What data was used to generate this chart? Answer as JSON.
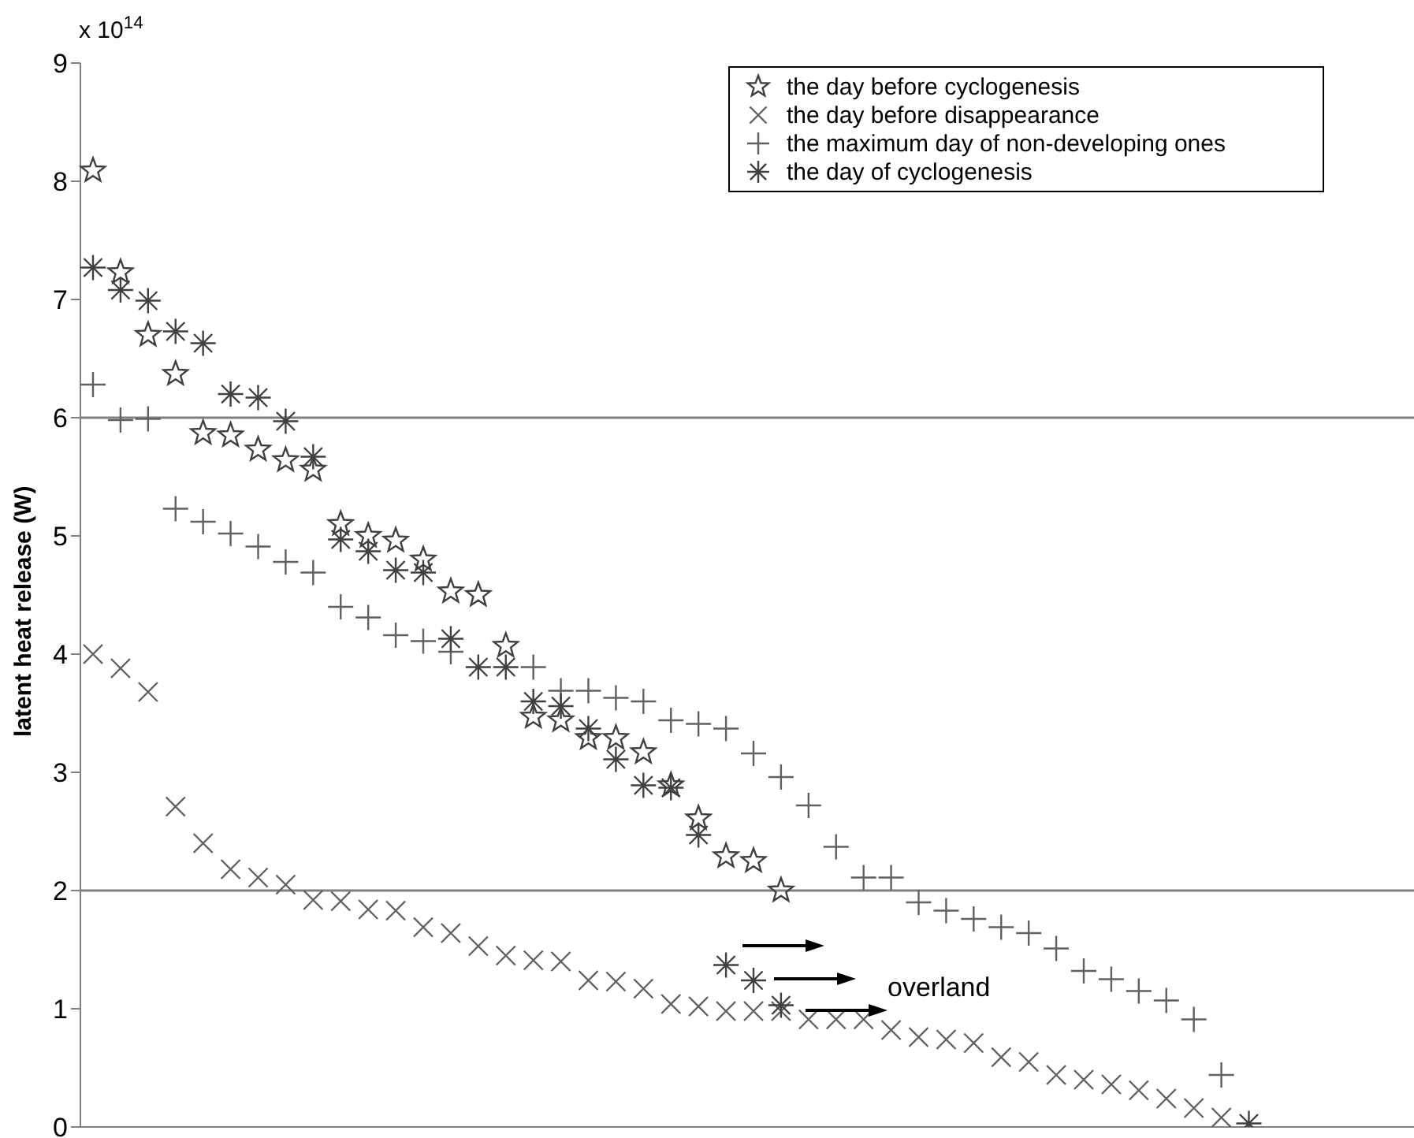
{
  "chart_data": {
    "type": "scatter",
    "ylabel": "latent heat release (W)",
    "annotations": [
      "x 10$^{14}$",
      "overland"
    ],
    "categories": [
      null,
      null,
      null,
      null,
      null,
      null,
      null,
      null,
      null,
      null,
      null,
      null,
      null,
      null,
      null,
      null,
      null,
      null,
      null,
      null,
      null,
      null,
      null,
      null,
      null,
      null,
      null,
      null,
      null,
      null,
      null,
      null,
      null,
      null,
      null,
      null,
      null,
      null,
      null,
      null,
      null,
      null,
      null,
      null,
      null,
      null,
      null,
      null,
      null
    ],
    "ylim": [
      0,
      9
    ],
    "yticks": [
      0,
      1,
      2,
      3,
      4,
      5,
      6,
      7,
      8,
      9
    ],
    "legend": "top right",
    "ref_lines": [
      {
        "axis": "y",
        "value": 2,
        "color": "#808080"
      },
      {
        "axis": "y",
        "value": 6,
        "color": "#808080"
      }
    ],
    "series": [
      {
        "name": "the day before cyclogenesis",
        "color": "#404040",
        "marker": "star",
        "values": [
          8.09,
          7.23,
          6.7,
          6.37,
          5.87,
          5.85,
          5.73,
          5.64,
          5.56,
          5.1,
          5.0,
          4.96,
          4.8,
          4.53,
          4.5,
          4.07,
          3.47,
          3.44,
          3.29,
          3.29,
          3.17,
          2.89,
          2.61,
          2.29,
          2.25,
          2.0,
          null,
          null,
          null,
          null,
          null,
          null,
          null,
          null,
          null,
          null,
          null,
          null,
          null,
          null,
          null,
          null,
          null,
          null,
          null,
          null,
          null,
          null,
          null
        ]
      },
      {
        "name": "the day before disappearance",
        "color": "#606060",
        "marker": "x",
        "values": [
          4.0,
          3.88,
          3.68,
          2.71,
          2.4,
          2.18,
          2.11,
          2.05,
          1.92,
          1.91,
          1.84,
          1.83,
          1.69,
          1.64,
          1.53,
          1.45,
          1.41,
          1.4,
          1.24,
          1.23,
          1.17,
          1.04,
          1.02,
          0.98,
          0.98,
          0.98,
          0.91,
          0.91,
          0.91,
          0.82,
          0.76,
          0.74,
          0.71,
          0.59,
          0.55,
          0.44,
          0.4,
          0.36,
          0.31,
          0.24,
          0.16,
          0.08,
          null,
          null,
          null,
          null,
          null,
          null,
          null
        ]
      },
      {
        "name": "the maximum day of non-developing ones",
        "color": "#606060",
        "marker": "plus",
        "values": [
          6.28,
          5.98,
          5.99,
          5.23,
          5.12,
          5.02,
          4.91,
          4.78,
          4.69,
          4.4,
          4.31,
          4.16,
          4.11,
          4.02,
          null,
          null,
          3.89,
          3.69,
          3.69,
          3.63,
          3.6,
          3.44,
          3.41,
          3.37,
          3.16,
          2.96,
          2.72,
          2.37,
          2.11,
          2.11,
          1.9,
          1.83,
          1.76,
          1.69,
          1.64,
          1.51,
          1.32,
          1.25,
          1.15,
          1.07,
          0.91,
          0.44,
          null,
          null,
          null,
          null,
          null,
          null,
          null
        ]
      },
      {
        "name": "the day of cyclogenesis",
        "color": "#404040",
        "marker": "cross",
        "values": [
          7.27,
          7.08,
          6.99,
          6.73,
          6.63,
          6.2,
          6.17,
          5.97,
          5.67,
          4.97,
          4.87,
          4.71,
          4.69,
          4.13,
          3.89,
          3.89,
          3.6,
          3.56,
          3.37,
          3.11,
          2.89,
          2.87,
          2.47,
          1.37,
          1.24,
          1.03,
          null,
          null,
          null,
          null,
          null,
          null,
          null,
          null,
          null,
          null,
          null,
          null,
          null,
          null,
          null,
          null,
          0.03,
          null,
          null,
          null,
          null,
          null,
          null
        ]
      }
    ]
  }
}
